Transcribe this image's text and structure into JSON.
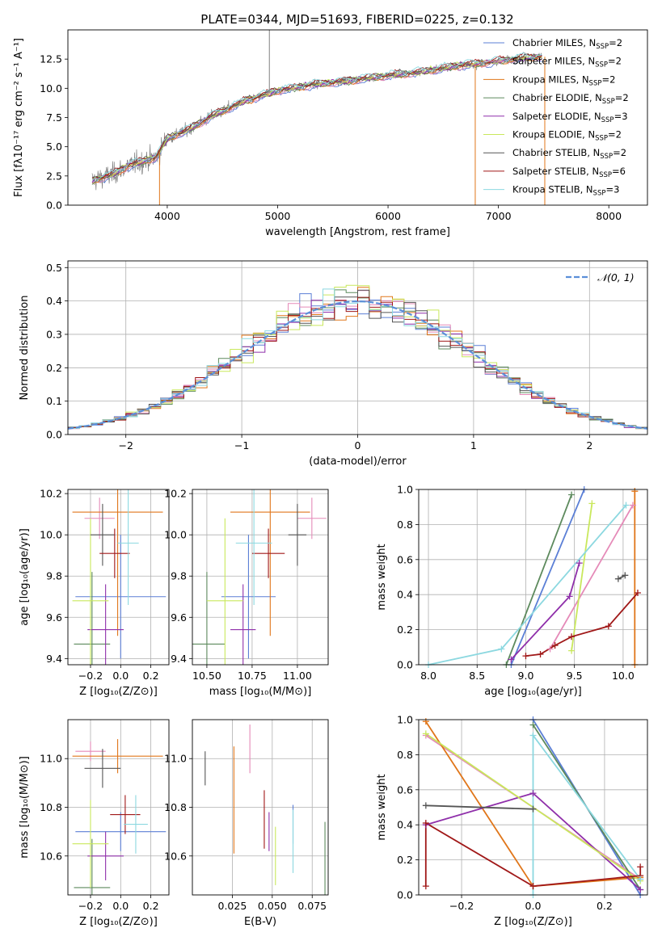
{
  "figure": {
    "title": "PLATE=0344, MJD=51693, FIBERID=0225, z=0.132"
  },
  "models": [
    {
      "name": "Chabrier MILES, N",
      "sub": "SSP",
      "tail": "=2",
      "color": "#5b7fd6"
    },
    {
      "name": "Salpeter MILES, N",
      "sub": "SSP",
      "tail": "=2",
      "color": "#e58ab8"
    },
    {
      "name": "Kroupa MILES, N",
      "sub": "SSP",
      "tail": "=2",
      "color": "#e0761a"
    },
    {
      "name": "Chabrier ELODIE, N",
      "sub": "SSP",
      "tail": "=2",
      "color": "#5d8a5d"
    },
    {
      "name": "Salpeter ELODIE, N",
      "sub": "SSP",
      "tail": "=3",
      "color": "#8f2faa"
    },
    {
      "name": "Kroupa ELODIE, N",
      "sub": "SSP",
      "tail": "=2",
      "color": "#c9e85c"
    },
    {
      "name": "Chabrier STELIB, N",
      "sub": "SSP",
      "tail": "=2",
      "color": "#555555"
    },
    {
      "name": "Salpeter STELIB, N",
      "sub": "SSP",
      "tail": "=6",
      "color": "#a01818"
    },
    {
      "name": "Kroupa STELIB, N",
      "sub": "SSP",
      "tail": "=3",
      "color": "#8cd8e0"
    }
  ],
  "chart_data": [
    {
      "id": "spectrum",
      "type": "line",
      "title": "PLATE=0344, MJD=51693, FIBERID=0225, z=0.132",
      "xlabel": "wavelength [Angstrom, rest frame]",
      "ylabel": "Flux [fλ10⁻¹⁷ erg cm⁻² s⁻¹ A⁻¹]",
      "xlim": [
        3100,
        8350
      ],
      "ylim": [
        0,
        15
      ],
      "xticks": [
        4000,
        5000,
        6000,
        7000,
        8000
      ],
      "yticks": [
        0.0,
        2.5,
        5.0,
        7.5,
        10.0,
        12.5
      ],
      "grid": false,
      "legend": "top-right",
      "continuum": [
        [
          3320,
          2.1
        ],
        [
          3500,
          2.6
        ],
        [
          3650,
          3.4
        ],
        [
          3800,
          3.8
        ],
        [
          3900,
          4.1
        ],
        [
          4000,
          5.7
        ],
        [
          4200,
          6.5
        ],
        [
          4400,
          7.6
        ],
        [
          4700,
          8.9
        ],
        [
          5000,
          9.8
        ],
        [
          5300,
          10.3
        ],
        [
          5600,
          10.6
        ],
        [
          6000,
          11.1
        ],
        [
          6300,
          11.4
        ],
        [
          6600,
          11.9
        ],
        [
          6900,
          12.2
        ],
        [
          7200,
          12.6
        ],
        [
          7400,
          12.7
        ]
      ],
      "spikes": [
        [
          4925,
          15.0
        ],
        [
          3930,
          0.0
        ],
        [
          6790,
          0.0
        ],
        [
          7420,
          0.0
        ]
      ]
    },
    {
      "id": "residuals",
      "type": "bar",
      "xlabel": "(data-model)/error",
      "ylabel": "Normed distribution",
      "xlim": [
        -2.5,
        2.5
      ],
      "ylim": [
        0,
        0.52
      ],
      "xticks": [
        -2,
        -1,
        0,
        1,
        2
      ],
      "yticks": [
        0.0,
        0.1,
        0.2,
        0.3,
        0.4,
        0.5
      ],
      "grid": true,
      "legend": "top-right",
      "reference": {
        "label": "𝒩(0, 1)",
        "type": "gaussian",
        "mean": 0,
        "sigma": 1,
        "color": "#5b8fd9"
      },
      "bin_width": 0.1
    },
    {
      "id": "age-vs-Z",
      "type": "scatter",
      "xlabel": "Z [log₁₀(Z/Z⊙)]",
      "ylabel": "age  [log₁₀(age/yr)]",
      "xlim": [
        -0.35,
        0.32
      ],
      "ylim": [
        9.37,
        10.22
      ],
      "xticks": [
        -0.2,
        0.0,
        0.2
      ],
      "yticks": [
        9.4,
        9.6,
        9.8,
        10.0,
        10.2
      ],
      "grid": true,
      "points": [
        {
          "model": 0,
          "x": 0.0,
          "xerr": 0.3,
          "y": 9.7,
          "yerr": 0.3
        },
        {
          "model": 1,
          "x": -0.14,
          "xerr": 0.1,
          "y": 10.08,
          "yerr": 0.1
        },
        {
          "model": 2,
          "x": -0.02,
          "xerr": 0.3,
          "y": 10.11,
          "yerr": 0.6
        },
        {
          "model": 3,
          "x": -0.19,
          "xerr": 0.12,
          "y": 9.47,
          "yerr": 0.35
        },
        {
          "model": 4,
          "x": -0.1,
          "xerr": 0.12,
          "y": 9.54,
          "yerr": 0.22
        },
        {
          "model": 5,
          "x": -0.2,
          "xerr": 0.12,
          "y": 9.68,
          "yerr": 0.4
        },
        {
          "model": 6,
          "x": -0.12,
          "xerr": 0.08,
          "y": 10.0,
          "yerr": 0.15
        },
        {
          "model": 7,
          "x": -0.04,
          "xerr": 0.1,
          "y": 9.91,
          "yerr": 0.12
        },
        {
          "model": 8,
          "x": 0.05,
          "xerr": 0.07,
          "y": 9.96,
          "yerr": 0.3
        }
      ]
    },
    {
      "id": "age-vs-mass",
      "type": "scatter",
      "xlabel": "mass [log₁₀(M/M⊙)]",
      "ylabel": "",
      "xlim": [
        10.42,
        11.17
      ],
      "ylim": [
        9.37,
        10.22
      ],
      "xticks": [
        10.5,
        10.75,
        11.0
      ],
      "yticks": [
        9.4,
        9.6,
        9.8,
        10.0,
        10.2
      ],
      "grid": true,
      "points": [
        {
          "model": 0,
          "x": 10.73,
          "xerr": 0.15,
          "y": 9.7,
          "yerr": 0.3
        },
        {
          "model": 1,
          "x": 11.08,
          "xerr": 0.08,
          "y": 10.08,
          "yerr": 0.1
        },
        {
          "model": 2,
          "x": 10.85,
          "xerr": 0.22,
          "y": 10.11,
          "yerr": 0.6
        },
        {
          "model": 3,
          "x": 10.5,
          "xerr": 0.1,
          "y": 9.47,
          "yerr": 0.35
        },
        {
          "model": 4,
          "x": 10.7,
          "xerr": 0.07,
          "y": 9.54,
          "yerr": 0.22
        },
        {
          "model": 5,
          "x": 10.6,
          "xerr": 0.1,
          "y": 9.68,
          "yerr": 0.4
        },
        {
          "model": 6,
          "x": 11.0,
          "xerr": 0.05,
          "y": 10.0,
          "yerr": 0.15
        },
        {
          "model": 7,
          "x": 10.84,
          "xerr": 0.09,
          "y": 9.91,
          "yerr": 0.12
        },
        {
          "model": 8,
          "x": 10.76,
          "xerr": 0.1,
          "y": 9.96,
          "yerr": 0.3
        }
      ]
    },
    {
      "id": "weight-vs-age",
      "type": "line",
      "xlabel": "age  [log₁₀(age/yr)]",
      "ylabel": "mass weight",
      "xlim": [
        7.9,
        10.25
      ],
      "ylim": [
        0,
        1.0
      ],
      "xticks": [
        8.0,
        8.5,
        9.0,
        9.5,
        10.0
      ],
      "yticks": [
        0.0,
        0.2,
        0.4,
        0.6,
        0.8,
        1.0
      ],
      "grid": true,
      "series": [
        {
          "model": 0,
          "points": [
            [
              8.85,
              0.0
            ],
            [
              9.6,
              1.0
            ]
          ]
        },
        {
          "model": 1,
          "points": [
            [
              9.25,
              0.09
            ],
            [
              10.1,
              0.91
            ]
          ]
        },
        {
          "model": 2,
          "points": [
            [
              10.12,
              0.0
            ],
            [
              10.12,
              0.99
            ]
          ]
        },
        {
          "model": 3,
          "points": [
            [
              8.8,
              0.0
            ],
            [
              9.47,
              0.97
            ]
          ]
        },
        {
          "model": 4,
          "points": [
            [
              8.85,
              0.03
            ],
            [
              9.45,
              0.39
            ],
            [
              9.55,
              0.58
            ]
          ]
        },
        {
          "model": 5,
          "points": [
            [
              9.47,
              0.08
            ],
            [
              9.68,
              0.92
            ]
          ]
        },
        {
          "model": 6,
          "points": [
            [
              9.95,
              0.49
            ],
            [
              10.02,
              0.51
            ]
          ]
        },
        {
          "model": 7,
          "points": [
            [
              9.0,
              0.05
            ],
            [
              9.15,
              0.06
            ],
            [
              9.3,
              0.11
            ],
            [
              9.47,
              0.16
            ],
            [
              9.85,
              0.22
            ],
            [
              10.15,
              0.41
            ]
          ]
        },
        {
          "model": 8,
          "points": [
            [
              8.0,
              0.0
            ],
            [
              8.75,
              0.09
            ],
            [
              10.03,
              0.91
            ]
          ]
        }
      ]
    },
    {
      "id": "mass-vs-Z",
      "type": "scatter",
      "xlabel": "Z [log₁₀(Z/Z⊙)]",
      "ylabel": "mass [log₁₀(M/M⊙)]",
      "xlim": [
        -0.35,
        0.32
      ],
      "ylim": [
        10.44,
        11.16
      ],
      "xticks": [
        -0.2,
        0.0,
        0.2
      ],
      "yticks": [
        10.6,
        10.8,
        11.0
      ],
      "grid": true,
      "points": [
        {
          "model": 0,
          "x": 0.0,
          "xerr": 0.3,
          "y": 10.7,
          "yerr": 0.08
        },
        {
          "model": 1,
          "x": -0.2,
          "xerr": 0.1,
          "y": 11.03,
          "yerr": 0.04
        },
        {
          "model": 2,
          "x": -0.02,
          "xerr": 0.3,
          "y": 11.01,
          "yerr": 0.07
        },
        {
          "model": 3,
          "x": -0.19,
          "xerr": 0.12,
          "y": 10.47,
          "yerr": 0.2
        },
        {
          "model": 4,
          "x": -0.1,
          "xerr": 0.12,
          "y": 10.6,
          "yerr": 0.1
        },
        {
          "model": 5,
          "x": -0.2,
          "xerr": 0.12,
          "y": 10.65,
          "yerr": 0.18
        },
        {
          "model": 6,
          "x": -0.12,
          "xerr": 0.12,
          "y": 10.96,
          "yerr": 0.08
        },
        {
          "model": 7,
          "x": 0.03,
          "xerr": 0.1,
          "y": 10.77,
          "yerr": 0.08
        },
        {
          "model": 8,
          "x": 0.1,
          "xerr": 0.08,
          "y": 10.73,
          "yerr": 0.12
        }
      ]
    },
    {
      "id": "mass-vs-ebv",
      "type": "scatter",
      "xlabel": "E(B-V)",
      "ylabel": "",
      "xlim": [
        0.0,
        0.085
      ],
      "ylim": [
        10.44,
        11.16
      ],
      "xticks": [
        0.025,
        0.05,
        0.075
      ],
      "xtick_labels": [
        "0.025",
        "0.050",
        "0.075"
      ],
      "yticks": [
        10.6,
        10.8,
        11.0
      ],
      "grid": true,
      "points": [
        {
          "model": 6,
          "x": 0.008,
          "y": 10.96,
          "yerr": 0.07
        },
        {
          "model": 2,
          "x": 0.026,
          "y": 10.83,
          "yerr": 0.22
        },
        {
          "model": 1,
          "x": 0.036,
          "y": 11.04,
          "yerr": 0.1
        },
        {
          "model": 7,
          "x": 0.045,
          "y": 10.75,
          "yerr": 0.12
        },
        {
          "model": 4,
          "x": 0.048,
          "y": 10.7,
          "yerr": 0.08
        },
        {
          "model": 5,
          "x": 0.052,
          "y": 10.6,
          "yerr": 0.12
        },
        {
          "model": 0,
          "x": 0.063,
          "y": 10.73,
          "yerr": 0.08
        },
        {
          "model": 8,
          "x": 0.063,
          "y": 10.66,
          "yerr": 0.13
        },
        {
          "model": 3,
          "x": 0.083,
          "y": 10.54,
          "yerr": 0.2
        }
      ]
    },
    {
      "id": "weight-vs-Z",
      "type": "line",
      "xlabel": "Z [log₁₀(Z/Z⊙)]",
      "ylabel": "mass weight",
      "xlim": [
        -0.32,
        0.32
      ],
      "ylim": [
        0,
        1.0
      ],
      "xticks": [
        -0.2,
        0.0,
        0.2
      ],
      "yticks": [
        0.0,
        0.2,
        0.4,
        0.6,
        0.8,
        1.0
      ],
      "grid": true,
      "series": [
        {
          "model": 0,
          "points": [
            [
              0.0,
              1.0
            ],
            [
              0.3,
              0.0
            ]
          ]
        },
        {
          "model": 1,
          "points": [
            [
              -0.3,
              0.91
            ],
            [
              0.3,
              0.09
            ]
          ]
        },
        {
          "model": 2,
          "points": [
            [
              -0.3,
              0.99
            ],
            [
              0.0,
              0.05
            ],
            [
              0.3,
              0.1
            ]
          ]
        },
        {
          "model": 3,
          "points": [
            [
              0.0,
              0.97
            ],
            [
              0.3,
              0.03
            ]
          ]
        },
        {
          "model": 4,
          "points": [
            [
              -0.3,
              0.4
            ],
            [
              0.0,
              0.58
            ],
            [
              0.3,
              0.03
            ]
          ]
        },
        {
          "model": 5,
          "points": [
            [
              -0.3,
              0.92
            ],
            [
              0.3,
              0.08
            ]
          ]
        },
        {
          "model": 6,
          "points": [
            [
              -0.3,
              0.51
            ],
            [
              0.0,
              0.49
            ]
          ]
        },
        {
          "model": 7,
          "points": [
            [
              -0.3,
              0.05
            ],
            [
              -0.3,
              0.41
            ],
            [
              0.0,
              0.05
            ],
            [
              0.3,
              0.11
            ],
            [
              0.3,
              0.16
            ]
          ]
        },
        {
          "model": 8,
          "points": [
            [
              0.0,
              0.0
            ],
            [
              0.0,
              0.91
            ],
            [
              0.3,
              0.09
            ]
          ]
        }
      ]
    }
  ]
}
